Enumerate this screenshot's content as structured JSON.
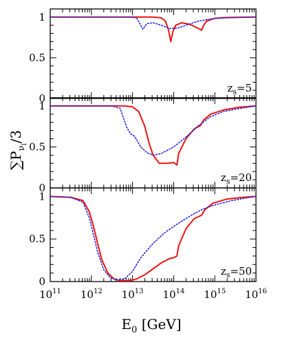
{
  "chart_data": {
    "type": "line",
    "xlabel": "E",
    "xlabel_sub": "0",
    "xlabel_unit": "[GeV]",
    "ylabel": "∑P",
    "ylabel_sub": "ν",
    "ylabel_subsub": "i",
    "ylabel_tail": "/3",
    "xscale": "log",
    "xlim": [
      100000000000.0,
      1e+16
    ],
    "x_ticks": [
      {
        "exp": "11",
        "value": 100000000000.0
      },
      {
        "exp": "12",
        "value": 1000000000000.0
      },
      {
        "exp": "13",
        "value": 10000000000000.0
      },
      {
        "exp": "14",
        "value": 100000000000000.0
      },
      {
        "exp": "15",
        "value": 1000000000000000.0
      },
      {
        "exp": "16",
        "value": 1e+16
      }
    ],
    "x_tick_base": "10",
    "y_ticks": [
      "0",
      "0.5",
      "1"
    ],
    "colors": {
      "solid": "#ee1111",
      "dotted": "#2222dd"
    },
    "panels": [
      {
        "label": "z",
        "label_sub": "s",
        "label_value": "=5",
        "ylim": [
          0,
          1.1
        ],
        "series": [
          {
            "style": "solid",
            "color": "#ee1111",
            "points": [
              [
                11,
                1
              ],
              [
                12,
                1
              ],
              [
                13,
                1
              ],
              [
                13.5,
                1
              ],
              [
                13.7,
                0.99
              ],
              [
                13.8,
                0.95
              ],
              [
                13.87,
                0.85
              ],
              [
                13.93,
                0.7
              ],
              [
                13.98,
                0.82
              ],
              [
                14.05,
                0.9
              ],
              [
                14.2,
                0.93
              ],
              [
                14.4,
                0.91
              ],
              [
                14.6,
                0.86
              ],
              [
                14.68,
                0.84
              ],
              [
                14.73,
                0.9
              ],
              [
                14.8,
                0.95
              ],
              [
                15,
                0.985
              ],
              [
                15.3,
                0.995
              ],
              [
                16,
                1
              ]
            ]
          },
          {
            "style": "dotted",
            "color": "#2222dd",
            "points": [
              [
                11,
                1
              ],
              [
                12,
                1
              ],
              [
                12.9,
                1
              ],
              [
                13.1,
                0.99
              ],
              [
                13.2,
                0.9
              ],
              [
                13.25,
                0.85
              ],
              [
                13.35,
                0.92
              ],
              [
                13.5,
                0.93
              ],
              [
                13.7,
                0.9
              ],
              [
                13.9,
                0.86
              ],
              [
                14.1,
                0.865
              ],
              [
                14.3,
                0.9
              ],
              [
                14.6,
                0.95
              ],
              [
                15,
                0.985
              ],
              [
                15.5,
                0.995
              ],
              [
                16,
                1
              ]
            ]
          }
        ]
      },
      {
        "label": "z",
        "label_sub": "s",
        "label_value": "=20",
        "ylim": [
          0,
          1.1
        ],
        "series": [
          {
            "style": "solid",
            "color": "#ee1111",
            "points": [
              [
                11,
                1
              ],
              [
                12,
                1
              ],
              [
                12.8,
                1
              ],
              [
                13,
                0.99
              ],
              [
                13.15,
                0.93
              ],
              [
                13.3,
                0.75
              ],
              [
                13.4,
                0.55
              ],
              [
                13.5,
                0.4
              ],
              [
                13.65,
                0.3
              ],
              [
                13.85,
                0.3
              ],
              [
                14,
                0.31
              ],
              [
                14.08,
                0.28
              ],
              [
                14.12,
                0.42
              ],
              [
                14.3,
                0.6
              ],
              [
                14.5,
                0.72
              ],
              [
                14.65,
                0.76
              ],
              [
                14.73,
                0.83
              ],
              [
                14.9,
                0.9
              ],
              [
                15.2,
                0.95
              ],
              [
                15.6,
                0.985
              ],
              [
                16,
                1
              ]
            ]
          },
          {
            "style": "dotted",
            "color": "#2222dd",
            "points": [
              [
                11,
                1
              ],
              [
                12,
                1
              ],
              [
                12.5,
                1
              ],
              [
                12.7,
                0.97
              ],
              [
                12.85,
                0.75
              ],
              [
                12.95,
                0.66
              ],
              [
                13.05,
                0.63
              ],
              [
                13.2,
                0.5
              ],
              [
                13.35,
                0.43
              ],
              [
                13.5,
                0.4
              ],
              [
                13.7,
                0.42
              ],
              [
                14,
                0.5
              ],
              [
                14.3,
                0.62
              ],
              [
                14.6,
                0.76
              ],
              [
                14.9,
                0.87
              ],
              [
                15.2,
                0.93
              ],
              [
                15.6,
                0.97
              ],
              [
                16,
                1
              ]
            ]
          }
        ]
      },
      {
        "label": "z",
        "label_sub": "s",
        "label_value": "=50",
        "ylim": [
          0,
          1.1
        ],
        "series": [
          {
            "style": "solid",
            "color": "#ee1111",
            "points": [
              [
                11,
                1
              ],
              [
                11.5,
                0.99
              ],
              [
                11.8,
                0.95
              ],
              [
                11.95,
                0.82
              ],
              [
                12.05,
                0.65
              ],
              [
                12.15,
                0.45
              ],
              [
                12.25,
                0.26
              ],
              [
                12.4,
                0.1
              ],
              [
                12.55,
                0.03
              ],
              [
                12.7,
                0.01
              ],
              [
                12.9,
                0.01
              ],
              [
                13.1,
                0.03
              ],
              [
                13.3,
                0.08
              ],
              [
                13.5,
                0.15
              ],
              [
                13.7,
                0.22
              ],
              [
                13.9,
                0.27
              ],
              [
                14,
                0.28
              ],
              [
                14.08,
                0.3
              ],
              [
                14.12,
                0.42
              ],
              [
                14.3,
                0.62
              ],
              [
                14.5,
                0.74
              ],
              [
                14.68,
                0.78
              ],
              [
                14.75,
                0.84
              ],
              [
                14.95,
                0.92
              ],
              [
                15.3,
                0.97
              ],
              [
                15.7,
                0.99
              ],
              [
                16,
                1
              ]
            ]
          },
          {
            "style": "dotted",
            "color": "#2222dd",
            "points": [
              [
                11,
                1
              ],
              [
                11.5,
                0.99
              ],
              [
                11.8,
                0.93
              ],
              [
                11.95,
                0.75
              ],
              [
                12.05,
                0.55
              ],
              [
                12.15,
                0.35
              ],
              [
                12.3,
                0.14
              ],
              [
                12.45,
                0.05
              ],
              [
                12.6,
                0.02
              ],
              [
                12.8,
                0.03
              ],
              [
                13,
                0.12
              ],
              [
                13.2,
                0.28
              ],
              [
                13.5,
                0.45
              ],
              [
                13.8,
                0.58
              ],
              [
                14.1,
                0.68
              ],
              [
                14.4,
                0.77
              ],
              [
                14.7,
                0.85
              ],
              [
                15,
                0.9
              ],
              [
                15.4,
                0.95
              ],
              [
                15.8,
                0.985
              ],
              [
                16,
                1
              ]
            ]
          }
        ]
      }
    ]
  }
}
